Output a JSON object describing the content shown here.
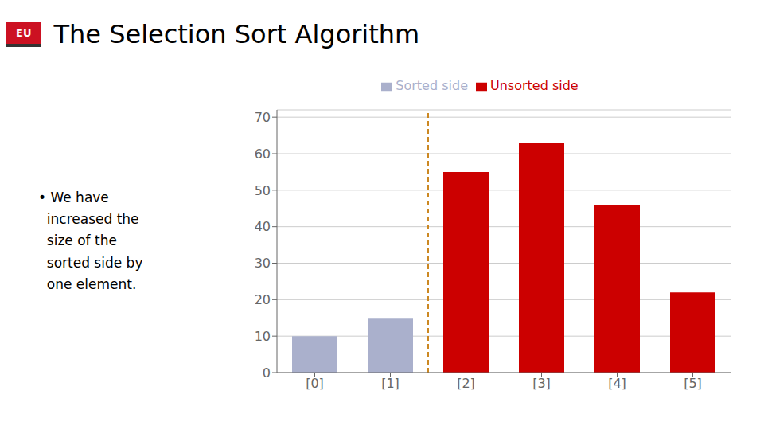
{
  "chart_data": {
    "type": "bar",
    "title": "The Selection Sort Algorithm",
    "categories": [
      "[0]",
      "[1]",
      "[2]",
      "[3]",
      "[4]",
      "[5]"
    ],
    "series": [
      {
        "name": "Sorted side",
        "color": "#aab0cc",
        "values": [
          10,
          15,
          null,
          null,
          null,
          null
        ]
      },
      {
        "name": "Unsorted side",
        "color": "#cc0000",
        "values": [
          null,
          null,
          55,
          63,
          46,
          22
        ]
      }
    ],
    "stacked": true,
    "ylim": [
      0,
      72
    ],
    "yticks": [
      0,
      10,
      20,
      30,
      40,
      50,
      60,
      70
    ],
    "grid": true,
    "annotations": [
      "• We have\n  increased the\n  size of the\n  sorted side by\n  one element.",
      "EU"
    ]
  }
}
